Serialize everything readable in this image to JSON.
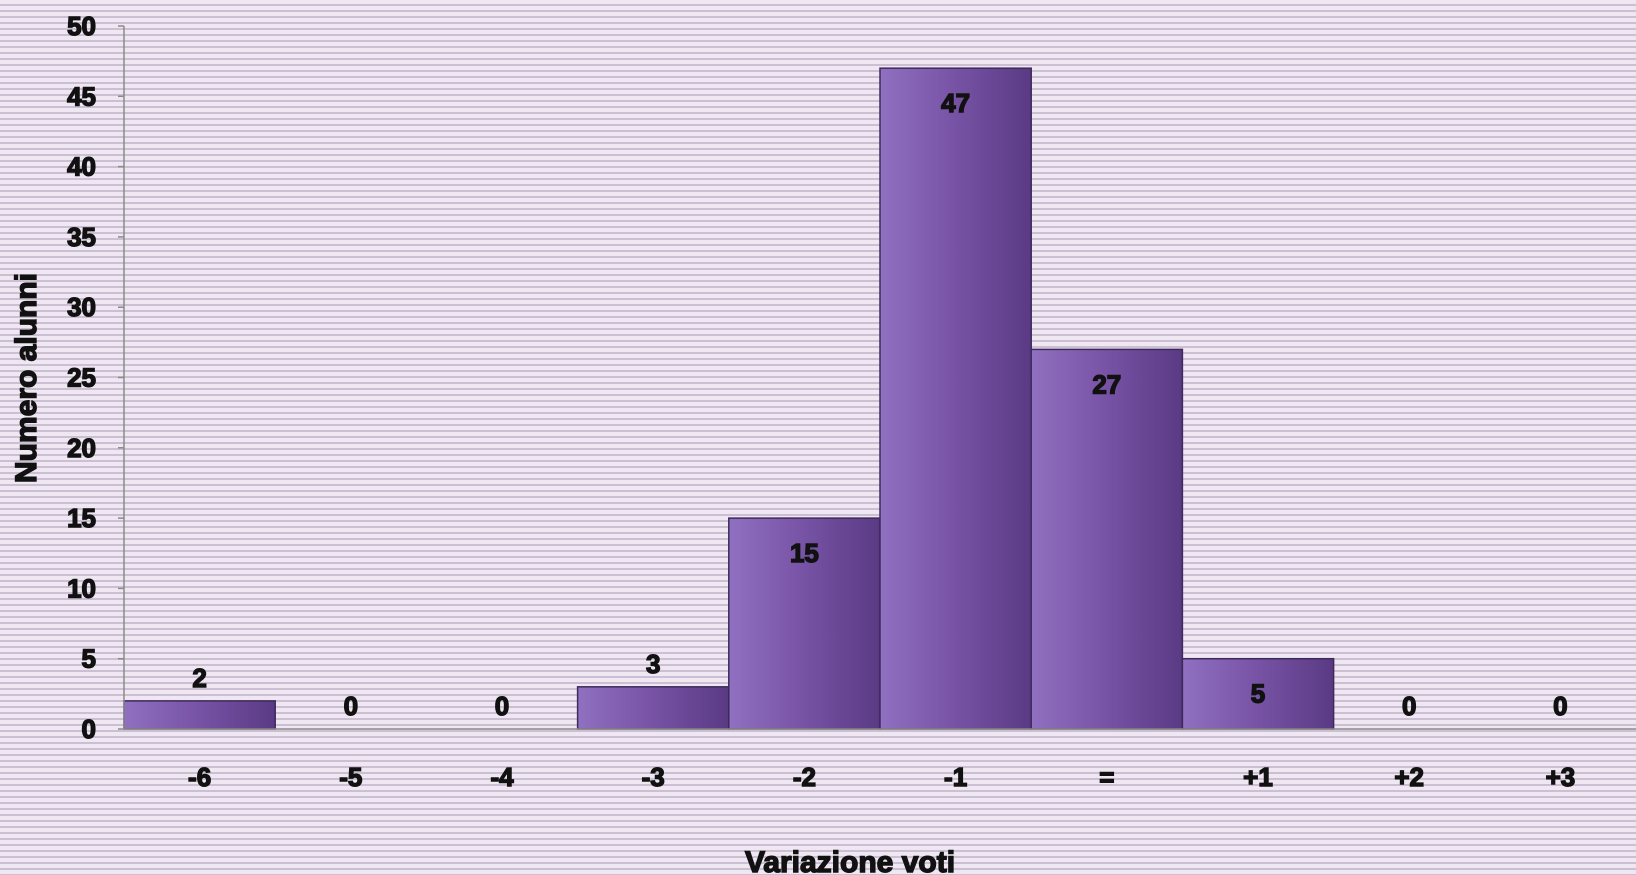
{
  "chart_data": {
    "type": "bar",
    "categories": [
      "-6",
      "-5",
      "-4",
      "-3",
      "-2",
      "-1",
      "=",
      "+1",
      "+2",
      "+3"
    ],
    "values": [
      2,
      0,
      0,
      3,
      15,
      47,
      27,
      5,
      0,
      0
    ],
    "xlabel": "Variazione voti",
    "ylabel": "Numero alunni",
    "ylim": [
      0,
      50
    ],
    "yticks": [
      0,
      5,
      10,
      15,
      20,
      25,
      30,
      35,
      40,
      45,
      50
    ],
    "grid": false,
    "legend": "none",
    "bar_color": "#7a55a8",
    "bar_color_light": "#9070c0",
    "bar_color_dark": "#5a3a84"
  }
}
